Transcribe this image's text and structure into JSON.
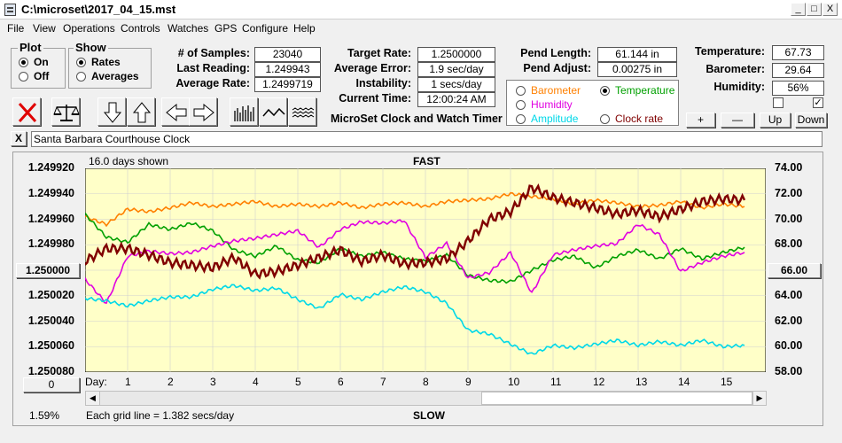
{
  "window": {
    "title": "C:\\microset\\2017_04_15.mst",
    "min": "_",
    "max": "□",
    "close": "X"
  },
  "menu": [
    "File",
    "View",
    "Operations",
    "Controls",
    "Watches",
    "GPS",
    "Configure",
    "Help"
  ],
  "plot_group": {
    "label": "Plot",
    "options": [
      "On",
      "Off"
    ],
    "selected": "On"
  },
  "show_group": {
    "label": "Show",
    "options": [
      "Rates",
      "Averages"
    ],
    "selected": "Rates"
  },
  "stats": {
    "samples_label": "# of Samples:",
    "samples": "23040",
    "last_label": "Last Reading:",
    "last": "1.249943",
    "avg_rate_label": "Average Rate:",
    "avg_rate": "1.2499719",
    "target_label": "Target Rate:",
    "target": "1.2500000",
    "avg_error_label": "Average Error:",
    "avg_error": "1.9 sec/day",
    "instability_label": "Instability:",
    "instability": "1 secs/day",
    "time_label": "Current Time:",
    "time": "12:00:24 AM",
    "pend_length_label": "Pend Length:",
    "pend_length": "61.144 in",
    "pend_adjust_label": "Pend Adjust:",
    "pend_adjust": "0.00275 in",
    "temp_label": "Temperature:",
    "temp": "67.73",
    "baro_label": "Barometer:",
    "baro": "29.64",
    "humidity_label": "Humidity:",
    "humidity": "56%"
  },
  "app_caption": "MicroSet Clock and Watch Timer",
  "sensors": [
    {
      "label": "Barometer",
      "color": "#ff8000",
      "selected": false
    },
    {
      "label": "Temperature",
      "color": "#00a000",
      "selected": true
    },
    {
      "label": "Humidity",
      "color": "#e000e0",
      "selected": false
    },
    {
      "label": "Amplitude",
      "color": "#00d8e8",
      "selected": false
    },
    {
      "label": "Clock rate",
      "color": "#800000",
      "selected": false
    }
  ],
  "adjust_buttons": [
    "+",
    "—",
    "Up",
    "Down"
  ],
  "checkboxes": [
    false,
    true
  ],
  "clock_name": "Santa Barbara Courthouse Clock",
  "clear_label": "X",
  "chart_data": {
    "type": "line",
    "top_label": "FAST",
    "bottom_label": "SLOW",
    "days_shown": "16.0 days shown",
    "grid_note": "Each grid line = 1.382 secs/day",
    "percent": "1.59%",
    "left_value_box": "0",
    "center_rate_box": "1.250000",
    "center_temp_box": "66.00",
    "x_label": "Day:",
    "x_ticks": [
      "1",
      "2",
      "3",
      "4",
      "5",
      "6",
      "7",
      "8",
      "9",
      "10",
      "11",
      "12",
      "13",
      "14",
      "15"
    ],
    "y_left_ticks": [
      "1.249920",
      "1.249940",
      "1.249960",
      "1.249980",
      "1.250000",
      "1.250020",
      "1.250040",
      "1.250060",
      "1.250080"
    ],
    "y_right_ticks": [
      "74.00",
      "72.00",
      "70.00",
      "68.00",
      "66.00",
      "64.00",
      "62.00",
      "60.00",
      "58.00"
    ],
    "y_left_range": [
      1.24992,
      1.25008
    ],
    "y_right_range": [
      58,
      74
    ],
    "x_range": [
      0,
      16
    ],
    "background": "#ffffc8",
    "series": [
      {
        "color": "#ff8000",
        "x": [
          0,
          0.5,
          1,
          1.5,
          2,
          2.5,
          3,
          3.5,
          4,
          4.5,
          5,
          5.5,
          6,
          6.5,
          7,
          7.5,
          8,
          8.5,
          9,
          9.5,
          10,
          10.5,
          11,
          11.5,
          12,
          12.5,
          13,
          13.5,
          14,
          14.5,
          15,
          15.5
        ],
        "y": [
          70.2,
          69.6,
          70.8,
          70.6,
          70.9,
          71.3,
          71.0,
          71.2,
          71.4,
          71.0,
          71.2,
          71.0,
          71.3,
          70.9,
          71.2,
          71.3,
          71.0,
          71.4,
          71.5,
          71.6,
          72.0,
          71.8,
          71.6,
          71.2,
          71.5,
          71.3,
          71.0,
          71.1,
          71.4,
          70.9,
          71.2,
          71.0
        ]
      },
      {
        "color": "#00a000",
        "x": [
          0,
          0.5,
          1,
          1.5,
          2,
          2.5,
          3,
          3.5,
          4,
          4.5,
          5,
          5.5,
          6,
          6.5,
          7,
          7.5,
          8,
          8.5,
          9,
          9.5,
          10,
          10.5,
          11,
          11.5,
          12,
          12.5,
          13,
          13.5,
          14,
          14.5,
          15,
          15.5
        ],
        "y": [
          70.4,
          68.6,
          68.2,
          69.6,
          69.2,
          69.7,
          69.1,
          67.6,
          67.1,
          67.9,
          66.8,
          66.6,
          67.7,
          67.1,
          67.4,
          66.9,
          66.7,
          67.2,
          65.6,
          65.2,
          65.1,
          66.0,
          66.8,
          67.1,
          66.2,
          67.1,
          67.6,
          66.9,
          67.7,
          66.9,
          67.4,
          67.8
        ]
      },
      {
        "color": "#e000e0",
        "x": [
          0,
          0.5,
          1,
          1.5,
          2,
          2.5,
          3,
          3.5,
          4,
          4.5,
          5,
          5.5,
          6,
          6.5,
          7,
          7.5,
          8,
          8.5,
          9,
          9.5,
          10,
          10.5,
          11,
          11.5,
          12,
          12.5,
          13,
          13.5,
          14,
          14.5,
          15,
          15.5
        ],
        "y": [
          65.3,
          63.4,
          67.1,
          67.5,
          67.3,
          67.4,
          67.9,
          68.3,
          68.5,
          68.8,
          69.1,
          67.8,
          69.2,
          69.8,
          69.7,
          69.9,
          67.0,
          68.1,
          65.4,
          65.8,
          67.4,
          64.2,
          67.2,
          67.6,
          67.9,
          68.1,
          69.6,
          68.8,
          65.9,
          66.6,
          67.1,
          67.4
        ]
      },
      {
        "color": "#00d8e8",
        "x": [
          0,
          0.5,
          1,
          1.5,
          2,
          2.5,
          3,
          3.5,
          4,
          4.5,
          5,
          5.5,
          6,
          6.5,
          7,
          7.5,
          8,
          8.5,
          9,
          9.5,
          10,
          10.5,
          11,
          11.5,
          12,
          12.5,
          13,
          13.5,
          14,
          14.5,
          15,
          15.5
        ],
        "y": [
          63.8,
          63.6,
          63.2,
          63.6,
          63.9,
          63.9,
          64.5,
          64.8,
          64.4,
          64.6,
          63.7,
          63.0,
          64.1,
          63.7,
          64.3,
          64.7,
          64.3,
          63.4,
          61.3,
          61.0,
          60.2,
          59.4,
          60.1,
          59.9,
          60.2,
          60.5,
          60.1,
          60.4,
          60.1,
          60.5,
          60.0,
          60.1
        ]
      },
      {
        "color": "#800000",
        "x": [
          0,
          0.5,
          1,
          1.5,
          2,
          2.5,
          3,
          3.5,
          4,
          4.5,
          5,
          5.5,
          6,
          6.5,
          7,
          7.5,
          8,
          8.5,
          9,
          9.5,
          10,
          10.5,
          11,
          11.5,
          12,
          12.5,
          13,
          13.5,
          14,
          14.5,
          15,
          15.5
        ],
        "y": [
          66.7,
          67.7,
          67.7,
          67.2,
          66.6,
          66.4,
          66.2,
          67.0,
          65.7,
          65.9,
          66.4,
          67.0,
          67.6,
          66.7,
          67.2,
          66.5,
          66.6,
          66.9,
          68.3,
          70.0,
          70.6,
          72.5,
          71.7,
          71.3,
          70.9,
          70.4,
          70.7,
          70.2,
          70.8,
          71.4,
          71.6,
          71.5
        ]
      }
    ]
  }
}
